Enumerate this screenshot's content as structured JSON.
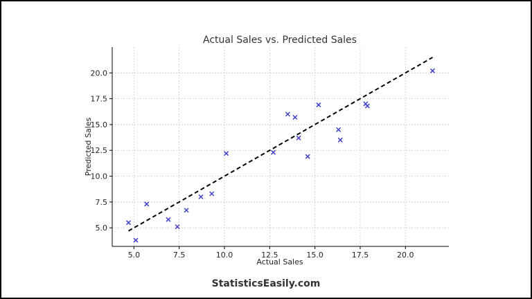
{
  "chart_data": {
    "type": "scatter",
    "title": "Actual Sales vs. Predicted Sales",
    "xlabel": "Actual Sales",
    "ylabel": "Predicted Sales",
    "xlim": [
      3.8,
      22.4
    ],
    "ylim": [
      3.2,
      22.5
    ],
    "xticks": [
      "5.0",
      "7.5",
      "10.0",
      "12.5",
      "15.0",
      "17.5",
      "20.0"
    ],
    "yticks": [
      "5.0",
      "7.5",
      "10.0",
      "12.5",
      "15.0",
      "17.5",
      "20.0"
    ],
    "grid": true,
    "marker": "x",
    "marker_color": "#4040c8",
    "points": [
      {
        "x": 4.7,
        "y": 5.5
      },
      {
        "x": 5.1,
        "y": 3.8
      },
      {
        "x": 5.7,
        "y": 7.3
      },
      {
        "x": 6.9,
        "y": 5.8
      },
      {
        "x": 7.4,
        "y": 5.1
      },
      {
        "x": 7.9,
        "y": 6.7
      },
      {
        "x": 8.7,
        "y": 8.0
      },
      {
        "x": 9.3,
        "y": 8.3
      },
      {
        "x": 10.1,
        "y": 12.2
      },
      {
        "x": 12.7,
        "y": 12.3
      },
      {
        "x": 13.5,
        "y": 16.0
      },
      {
        "x": 13.9,
        "y": 15.7
      },
      {
        "x": 14.1,
        "y": 13.7
      },
      {
        "x": 14.6,
        "y": 11.9
      },
      {
        "x": 15.2,
        "y": 16.9
      },
      {
        "x": 16.3,
        "y": 14.5
      },
      {
        "x": 16.4,
        "y": 13.5
      },
      {
        "x": 17.8,
        "y": 17.0
      },
      {
        "x": 17.9,
        "y": 16.8
      },
      {
        "x": 21.5,
        "y": 20.2
      }
    ],
    "reference_line": {
      "style": "dashed",
      "color": "#000000",
      "x": [
        4.7,
        21.5
      ],
      "y": [
        4.7,
        21.5
      ]
    }
  },
  "footer": {
    "brand": "StatisticsEasily.com"
  }
}
